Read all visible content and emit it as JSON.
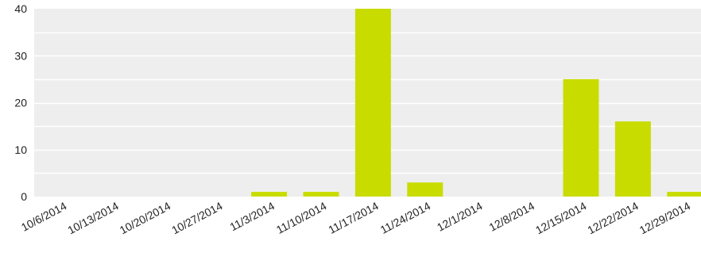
{
  "chart_data": {
    "type": "bar",
    "categories": [
      "10/6/2014",
      "10/13/2014",
      "10/20/2014",
      "10/27/2014",
      "11/3/2014",
      "11/10/2014",
      "11/17/2014",
      "11/24/2014",
      "12/1/2014",
      "12/8/2014",
      "12/15/2014",
      "12/22/2014",
      "12/29/2014"
    ],
    "values": [
      0,
      0,
      0,
      0,
      1,
      1,
      40,
      3,
      0,
      0,
      25,
      16,
      1
    ],
    "y_ticks": [
      0,
      10,
      20,
      30,
      40
    ],
    "ylim": [
      0,
      40
    ],
    "grid": true,
    "legend": "none",
    "colors": {
      "bar": "#c9dc00",
      "plot_background": "#eeeeee",
      "gridline": "#ffffff",
      "text": "#222222"
    }
  }
}
